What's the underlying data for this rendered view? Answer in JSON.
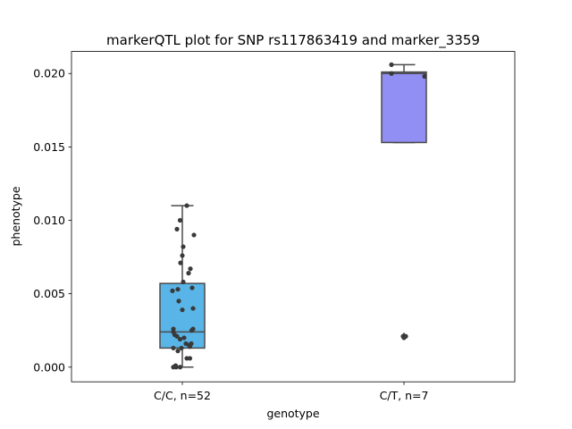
{
  "chart_data": {
    "type": "box",
    "title": "markerQTL plot for SNP rs117863419 and marker_3359",
    "xlabel": "genotype",
    "ylabel": "phenotype",
    "ylim": [
      -0.001,
      0.0215
    ],
    "yticks": [
      0.0,
      0.005,
      0.01,
      0.015,
      0.02
    ],
    "ytick_labels": [
      "0.000",
      "0.005",
      "0.010",
      "0.015",
      "0.020"
    ],
    "grid": false,
    "categories": [
      "C/C, n=52",
      "C/T, n=7"
    ],
    "series": [
      {
        "category": "C/C, n=52",
        "color": "#59b5e8",
        "whisker_low": 0.0,
        "q1": 0.0013,
        "median": 0.0024,
        "q3": 0.0057,
        "whisker_high": 0.011,
        "outliers": [],
        "points": [
          {
            "x": -0.2,
            "y": 0.0
          },
          {
            "x": -0.15,
            "y": 0.0001
          },
          {
            "x": -0.14,
            "y": 0.0
          },
          {
            "x": -0.05,
            "y": 0.0
          },
          {
            "x": -0.2,
            "y": 0.0013
          },
          {
            "x": -0.1,
            "y": 0.0011
          },
          {
            "x": -0.02,
            "y": 0.0013
          },
          {
            "x": 0.08,
            "y": 0.0016
          },
          {
            "x": 0.15,
            "y": 0.0015
          },
          {
            "x": 0.17,
            "y": 0.0014
          },
          {
            "x": 0.1,
            "y": 0.0006
          },
          {
            "x": 0.17,
            "y": 0.0006
          },
          {
            "x": -0.2,
            "y": 0.0024
          },
          {
            "x": -0.17,
            "y": 0.0022
          },
          {
            "x": -0.12,
            "y": 0.0021
          },
          {
            "x": -0.05,
            "y": 0.0019
          },
          {
            "x": 0.04,
            "y": 0.002
          },
          {
            "x": 0.24,
            "y": 0.0026
          },
          {
            "x": -0.2,
            "y": 0.0026
          },
          {
            "x": 0.21,
            "y": 0.0025
          },
          {
            "x": 0.2,
            "y": 0.0016
          },
          {
            "x": 0.0,
            "y": 0.0039
          },
          {
            "x": -0.08,
            "y": 0.0045
          },
          {
            "x": 0.24,
            "y": 0.004
          },
          {
            "x": -0.22,
            "y": 0.0052
          },
          {
            "x": -0.1,
            "y": 0.0053
          },
          {
            "x": 0.02,
            "y": 0.0058
          },
          {
            "x": 0.22,
            "y": 0.0054
          },
          {
            "x": 0.14,
            "y": 0.0064
          },
          {
            "x": 0.18,
            "y": 0.0067
          },
          {
            "x": -0.04,
            "y": 0.0071
          },
          {
            "x": 0.0,
            "y": 0.0076
          },
          {
            "x": 0.02,
            "y": 0.0082
          },
          {
            "x": -0.12,
            "y": 0.0094
          },
          {
            "x": -0.05,
            "y": 0.01
          },
          {
            "x": 0.1,
            "y": 0.011
          },
          {
            "x": 0.26,
            "y": 0.009
          }
        ]
      },
      {
        "category": "C/T, n=7",
        "color": "#918ef4",
        "whisker_low": 0.0153,
        "q1": 0.0153,
        "median": 0.02,
        "q3": 0.0201,
        "whisker_high": 0.0206,
        "outliers": [
          0.0021
        ],
        "points": [
          {
            "x": -0.28,
            "y": 0.0206
          },
          {
            "x": -0.28,
            "y": 0.02
          },
          {
            "x": 0.46,
            "y": 0.0198
          },
          {
            "x": -0.02,
            "y": 0.0021
          },
          {
            "x": 0.04,
            "y": 0.0021
          },
          {
            "x": 0.0,
            "y": 0.002
          }
        ]
      }
    ]
  }
}
